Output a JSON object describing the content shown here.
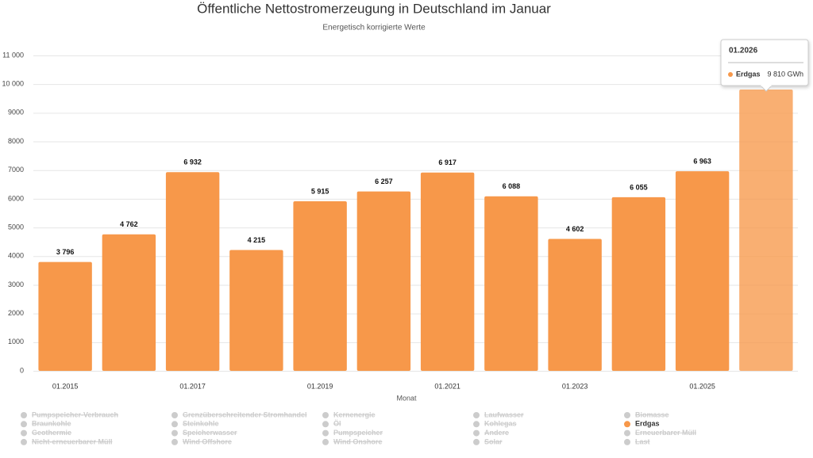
{
  "chart_data": {
    "type": "bar",
    "title": "Öffentliche Nettostromerzeugung in Deutschland im Januar",
    "subtitle": "Energetisch korrigierte Werte",
    "x_label": "Monat",
    "categories": [
      "01.2015",
      null,
      "01.2017",
      null,
      "01.2019",
      null,
      "01.2021",
      null,
      "01.2023",
      null,
      "01.2025",
      null
    ],
    "ylim": [
      0,
      11000
    ],
    "yticks": [
      0,
      1000,
      2000,
      3000,
      4000,
      5000,
      6000,
      7000,
      8000,
      9000,
      {
        "value": 10000,
        "label": "10 000"
      },
      {
        "value": 11000,
        "label": "11 000"
      }
    ],
    "grid": true,
    "series": [
      {
        "name": "Pumpspeicher-Verbrauch",
        "visible": false
      },
      {
        "name": "Braunkohle",
        "visible": false
      },
      {
        "name": "Geothermie",
        "visible": false
      },
      {
        "name": "Nicht-erneuerbarer Müll",
        "visible": false
      },
      {
        "name": "Grenzüberschreitender Stromhandel",
        "visible": false
      },
      {
        "name": "Steinkohle",
        "visible": false
      },
      {
        "name": "Speicherwasser",
        "visible": false
      },
      {
        "name": "Wind Offshore",
        "visible": false
      },
      {
        "name": "Kernenergie",
        "visible": false
      },
      {
        "name": "Öl",
        "visible": false
      },
      {
        "name": "Pumpspeicher",
        "visible": false
      },
      {
        "name": "Wind Onshore",
        "visible": false
      },
      {
        "name": "Laufwasser",
        "visible": false
      },
      {
        "name": "Kohlegas",
        "visible": false
      },
      {
        "name": "Andere",
        "visible": false
      },
      {
        "name": "Solar",
        "visible": false
      },
      {
        "name": "Biomasse",
        "visible": false
      },
      {
        "name": "Erdgas",
        "visible": true,
        "color": "#f7984a",
        "values": [
          3796,
          4762,
          6932,
          4215,
          5915,
          6257,
          6917,
          6088,
          4602,
          6055,
          6963,
          9810
        ],
        "value_labels": [
          "3 796",
          "4 762",
          "6 932",
          "4 215",
          "5 915",
          "6 257",
          "6 917",
          "6 088",
          "4 602",
          "6 055",
          "6 963",
          null
        ]
      },
      {
        "name": "Erneuerbarer Müll",
        "visible": false
      },
      {
        "name": "Last",
        "visible": false
      }
    ],
    "tooltip": {
      "title": "01.2026",
      "series": "Erdgas",
      "value_label": "9 810 GWh"
    }
  }
}
